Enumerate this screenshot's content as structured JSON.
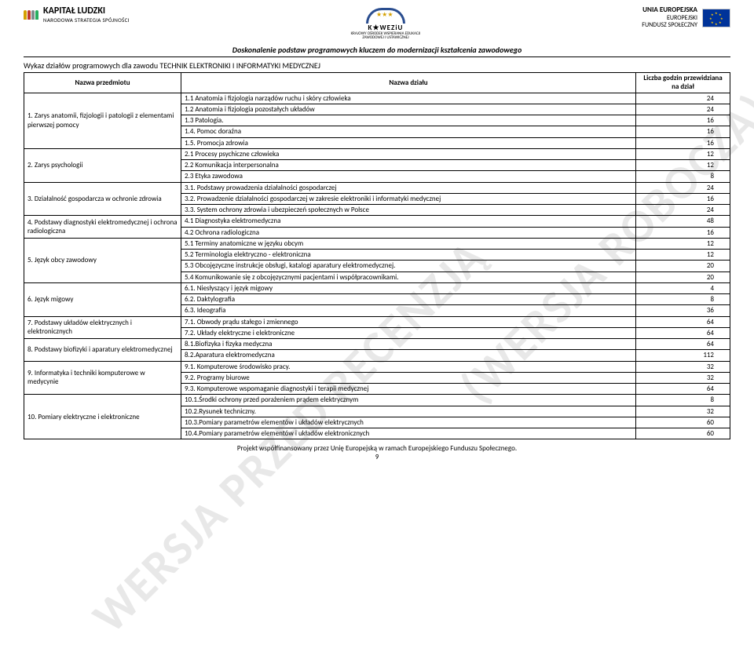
{
  "watermark1": "(WERSJA ROBOCZA)",
  "watermark2": "WERSJA PRZED RECENZJĄ",
  "header": {
    "kapital_title": "KAPITAŁ LUDZKI",
    "kapital_sub": "NARODOWA STRATEGIA SPÓJNOŚCI",
    "koweziu_title": "K★WEZiU",
    "koweziu_sub1": "KRAJOWY OŚRODEK WSPIERANIA EDUKACJI",
    "koweziu_sub2": "ZAWODOWEJ I USTAWICZNEJ",
    "eu_line1": "UNIA EUROPEJSKA",
    "eu_line2": "EUROPEJSKI",
    "eu_line3": "FUNDUSZ SPOŁECZNY"
  },
  "title": "Doskonalenie podstaw programowych kluczem do modernizacji kształcenia zawodowego",
  "subtitle": "Wykaz działów programowych dla zawodu TECHNIK ELEKTRONIKI I INFORMATYKI MEDYCZNEJ",
  "columns": {
    "c1": "Nazwa przedmiotu",
    "c2": "Nazwa działu",
    "c3": "Liczba godzin przewidziana na dział"
  },
  "subjects": [
    {
      "name": "1.  Zarys anatomii, fizjologii i patologii z elementami pierwszej pomocy",
      "rows": 5
    },
    {
      "name": "2.  Zarys psychologii",
      "rows": 3
    },
    {
      "name": "3.  Działalność gospodarcza w ochronie zdrowia",
      "rows": 3
    },
    {
      "name": "4.  Podstawy diagnostyki elektromedycznej i ochrona radiologiczna",
      "rows": 2
    },
    {
      "name": "5.  Język obcy zawodowy",
      "rows": 4
    },
    {
      "name": "6.  Język migowy",
      "rows": 3
    },
    {
      "name": "7.  Podstawy układów elektrycznych i elektronicznych",
      "rows": 2
    },
    {
      "name": "8.  Podstawy biofizyki i aparatury elektromedycznej",
      "rows": 2
    },
    {
      "name": "9.  Informatyka i techniki komputerowe w medycynie",
      "rows": 3
    },
    {
      "name": "10. Pomiary elektryczne i elektroniczne",
      "rows": 4
    }
  ],
  "rows": [
    {
      "d": "1.1 Anatomia i fizjologia narządów ruchu i skóry człowieka",
      "h": "24"
    },
    {
      "d": "1.2 Anatomia i fizjologia pozostałych układów",
      "h": "24"
    },
    {
      "d": "1.3 Patologia.",
      "h": "16"
    },
    {
      "d": "1.4. Pomoc doraźna",
      "h": "16"
    },
    {
      "d": "1.5. Promocja zdrowia",
      "h": "16"
    },
    {
      "d": "2.1 Procesy psychiczne człowieka",
      "h": "12"
    },
    {
      "d": "2.2 Komunikacja interpersonalna",
      "h": "12"
    },
    {
      "d": "2.3 Etyka zawodowa",
      "h": "8"
    },
    {
      "d": "3.1. Podstawy prowadzenia działalności gospodarczej",
      "h": "24"
    },
    {
      "d": "3.2. Prowadzenie działalności gospodarczej w zakresie elektroniki i informatyki medycznej",
      "h": "16"
    },
    {
      "d": "3.3. System ochrony zdrowia i ubezpieczeń społecznych w Polsce",
      "h": "24"
    },
    {
      "d": "4.1 Diagnostyka elektromedyczna",
      "h": "48"
    },
    {
      "d": "4.2 Ochrona radiologiczna",
      "h": "16"
    },
    {
      "d": "5.1   Terminy anatomiczne w języku obcym",
      "h": "12"
    },
    {
      "d": "5.2 Terminologia elektryczno - elektroniczna",
      "h": "12"
    },
    {
      "d": "5.3 Obcojęzyczne instrukcje obsługi, katalogi aparatury elektromedycznej.",
      "h": "20"
    },
    {
      "d": "5.4 Komunikowanie się z obcojęzycznymi pacjentami i współpracownikami.",
      "h": "20"
    },
    {
      "d": "6.1. Niesłyszący i język migowy",
      "h": "4"
    },
    {
      "d": "6.2. Daktylografia",
      "h": "8"
    },
    {
      "d": "6.3. Ideografia",
      "h": "36"
    },
    {
      "d": "7.1.   Obwody prądu stałego i zmiennego",
      "h": "64"
    },
    {
      "d": "7.2.   Układy elektryczne i elektroniczne",
      "h": "64"
    },
    {
      "d": "8.1.Biofizyka i fizyka medyczna",
      "h": "64"
    },
    {
      "d": "8.2.Aparatura elektromedyczna",
      "h": "112"
    },
    {
      "d": "9.1.  Komputerowe środowisko pracy.",
      "h": "32"
    },
    {
      "d": "9.2. Programy biurowe",
      "h": "32"
    },
    {
      "d": "9.3. Komputerowe wspomaganie diagnostyki i terapii medycznej",
      "h": "64"
    },
    {
      "d": "10.1.Środki ochrony przed porażeniem prądem elektrycznym",
      "h": "8"
    },
    {
      "d": "10.2.Rysunek techniczny.",
      "h": "32"
    },
    {
      "d": "10.3.Pomiary parametrów elementów i układów elektrycznych",
      "h": "60"
    },
    {
      "d": "10.4.Pomiary parametrów elementów i układów elektronicznych",
      "h": "60"
    }
  ],
  "footer": "Projekt współfinansowany przez Unię Europejską w ramach Europejskiego Funduszu Społecznego.",
  "page_number": "9",
  "colors": {
    "kl_people": [
      "#d4a000",
      "#c0392b",
      "#7f8c8d",
      "#27ae60"
    ],
    "eu_flag_bg": "#003399",
    "eu_star": "#ffcc00",
    "watermark": "#e8e8e8",
    "border": "#000000"
  }
}
